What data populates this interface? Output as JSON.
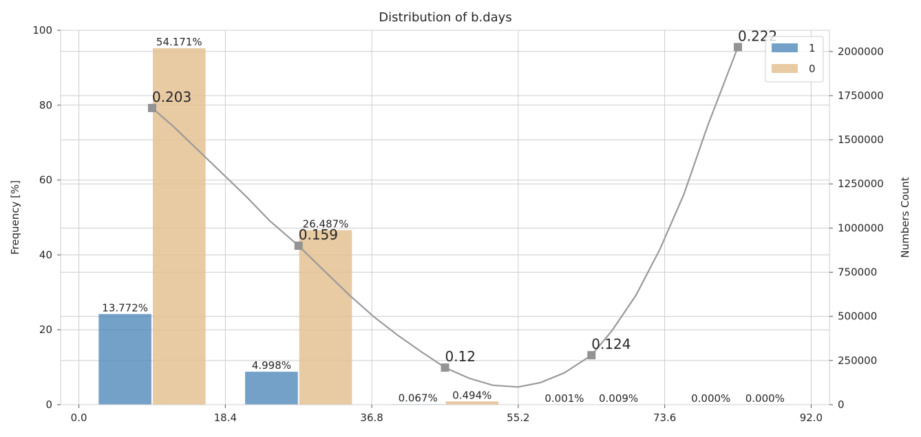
{
  "chart_data": {
    "type": "bar",
    "title": "Distribution of b.days",
    "ylabel": "Frequency [%]",
    "y2label": "Numbers Count",
    "ylim": [
      0,
      100
    ],
    "y2lim": [
      0,
      2120000
    ],
    "xlim": [
      -2.3,
      94.3
    ],
    "x_ticks": [
      "0.0",
      "18.4",
      "36.8",
      "55.2",
      "73.6",
      "92.0"
    ],
    "x_tick_values": [
      0,
      18.4,
      36.8,
      55.2,
      73.6,
      92.0
    ],
    "y_ticks": [
      "0",
      "20",
      "40",
      "60",
      "80",
      "100"
    ],
    "y_tick_values": [
      0,
      20,
      40,
      60,
      80,
      100
    ],
    "y2_ticks": [
      "0",
      "250000",
      "500000",
      "750000",
      "1000000",
      "1250000",
      "1500000",
      "1750000",
      "2000000"
    ],
    "y2_tick_values": [
      0,
      250000,
      500000,
      750000,
      1000000,
      1250000,
      1500000,
      1750000,
      2000000
    ],
    "grid": true,
    "legend_position": "top-right",
    "bin_centers": [
      9.2,
      27.6,
      46.0,
      64.4,
      82.8
    ],
    "bar_width": 6.8,
    "series": [
      {
        "name": "1",
        "color": "#4c86b8",
        "values": [
          24.2,
          8.8,
          0.12,
          0.002,
          0.0
        ],
        "labels": [
          "13.772%",
          "4.998%",
          "0.067%",
          "0.001%",
          "0.000%"
        ]
      },
      {
        "name": "0",
        "color": "#e4c193",
        "values": [
          95.2,
          46.6,
          0.87,
          0.016,
          0.0
        ],
        "labels": [
          "54.171%",
          "26.487%",
          "0.494%",
          "0.009%",
          "0.000%"
        ]
      }
    ],
    "rate_line": {
      "color": "#999999",
      "points_x": [
        9.2,
        27.6,
        46.0,
        64.4,
        82.8
      ],
      "points_y2": [
        1680000,
        900000,
        210000,
        280000,
        2025000
      ],
      "point_labels": [
        "0.203",
        "0.159",
        "0.12",
        "0.124",
        "0.222"
      ],
      "curve_x": [
        9.2,
        12,
        15,
        18,
        21,
        24,
        27.6,
        31,
        34,
        37,
        40,
        43,
        46,
        49,
        52,
        55.2,
        58,
        61,
        64.4,
        67,
        70,
        73,
        76,
        79,
        82.8
      ],
      "curve_y2": [
        1680000,
        1570000,
        1440000,
        1310000,
        1180000,
        1040000,
        900000,
        750000,
        620000,
        500000,
        395000,
        300000,
        210000,
        150000,
        110000,
        100000,
        125000,
        180000,
        280000,
        420000,
        620000,
        880000,
        1190000,
        1580000,
        2025000
      ]
    }
  }
}
